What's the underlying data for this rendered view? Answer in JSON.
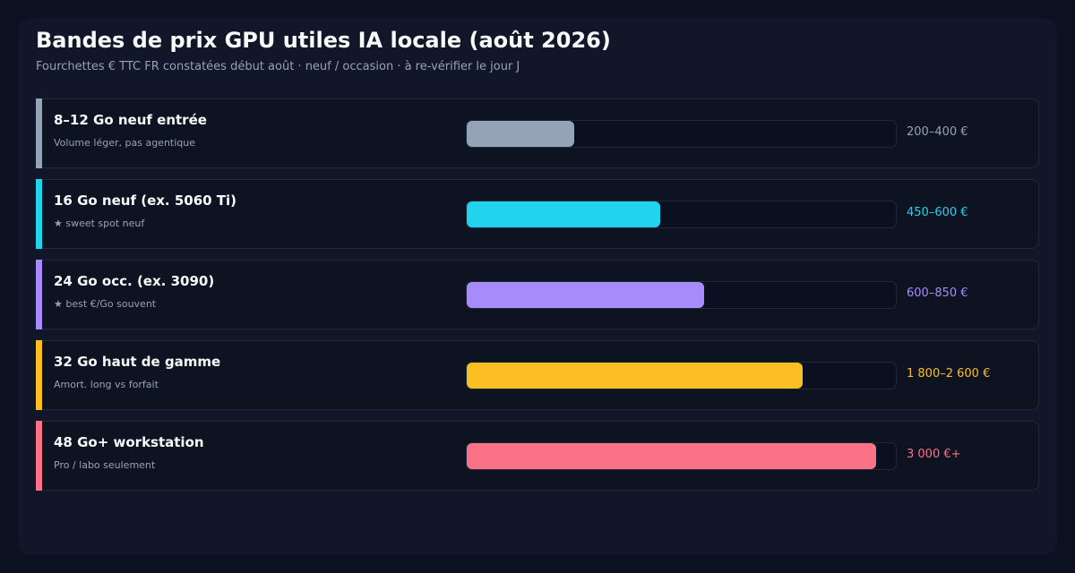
{
  "title": "Bandes de prix GPU utiles IA locale (août 2026)",
  "subtitle": "Fourchettes € TTC FR constatées début août · neuf / occasion · à re-vérifier le jour J",
  "chart_data": {
    "type": "bar",
    "orientation": "horizontal",
    "title": "Bandes de prix GPU utiles IA locale (août 2026)",
    "subtitle": "Fourchettes € TTC FR constatées début août · neuf / occasion · à re-vérifier le jour J",
    "categories": [
      "8–12 Go neuf entrée",
      "16 Go neuf (ex. 5060 Ti)",
      "24 Go occ. (ex. 3090)",
      "32 Go haut de gamme",
      "48 Go+ workstation"
    ],
    "notes": [
      "Volume léger, pas agentique",
      "★ sweet spot neuf",
      "★ best €/Go souvent",
      "Amort. long vs forfait",
      "Pro / labo seulement"
    ],
    "range_labels": [
      "200–400 €",
      "450–600 €",
      "600–850 €",
      "1 800–2 600 €",
      "3 000 €+"
    ],
    "values": [
      0.25,
      0.45,
      0.55,
      0.78,
      0.95
    ],
    "value_unit": "fraction of bar track filled",
    "colors": [
      "#94a3b8",
      "#22d3ee",
      "#a78bfa",
      "#fbbf24",
      "#fb7185"
    ],
    "grid": false,
    "legend": "none"
  }
}
